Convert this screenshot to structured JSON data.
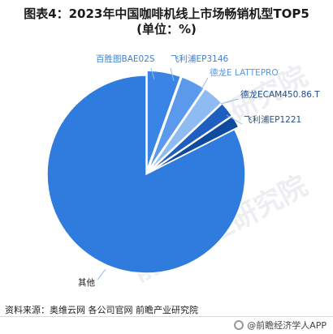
{
  "title_line1": "图表4：2023年中国咖啡机线上市场畅销机型TOP5",
  "title_line2": "(单位：%)",
  "chart_data": {
    "type": "pie",
    "title": "图表4：2023年中国咖啡机线上市场畅销机型TOP5 (单位：%)",
    "unit": "%",
    "slices": [
      {
        "label": "百胜图BAE02S",
        "value": 5.5,
        "color": "#3a84e6"
      },
      {
        "label": "飞利浦EP3146",
        "value": 4.0,
        "color": "#5a99ec"
      },
      {
        "label": "德龙E LATTEPRO",
        "value": 3.5,
        "color": "#8ebcf2"
      },
      {
        "label": "德龙ECAM450.86.T",
        "value": 2.5,
        "color": "#1f5fbf"
      },
      {
        "label": "飞利浦EP1221",
        "value": 2.0,
        "color": "#0f4a9e"
      },
      {
        "label": "其他",
        "value": 82.5,
        "color": "#2f7bde"
      }
    ]
  },
  "source": "资料来源：奥维云网 各公司官网 前瞻产业研究院",
  "brand": "@前瞻经济学人APP",
  "watermark": "前瞻产业研究院"
}
